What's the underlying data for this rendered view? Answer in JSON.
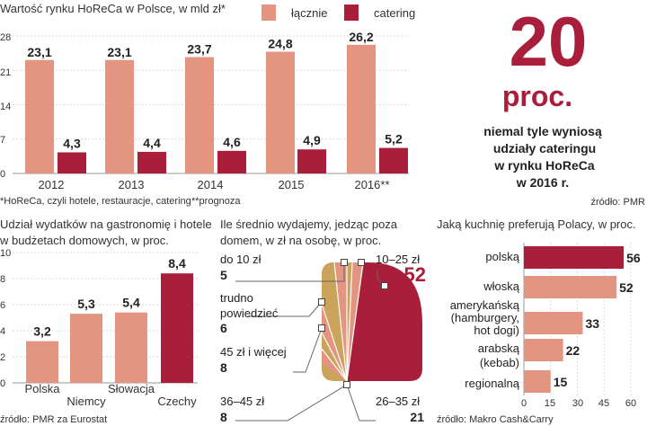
{
  "colors": {
    "salmon": "#e39582",
    "crimson": "#a91e3b",
    "gold": "#c9a45a",
    "text": "#333333",
    "grid": "#d9d9d9"
  },
  "chart_data": [
    {
      "type": "bar",
      "title": "Wartość rynku HoReCa w Polsce, w mld zł*",
      "categories": [
        "2012",
        "2013",
        "2014",
        "2015",
        "2016**"
      ],
      "series": [
        {
          "name": "łącznie",
          "values": [
            23.1,
            23.1,
            23.7,
            24.8,
            26.2
          ],
          "labels": [
            "23,1",
            "23,1",
            "23,7",
            "24,8",
            "26,2"
          ]
        },
        {
          "name": "catering",
          "values": [
            4.3,
            4.4,
            4.6,
            4.9,
            5.2
          ],
          "labels": [
            "4,3",
            "4,4",
            "4,6",
            "4,9",
            "5,2"
          ]
        }
      ],
      "ylim": [
        0,
        28
      ],
      "yticks": [
        "0",
        "7",
        "14",
        "21",
        "28"
      ],
      "footnote_left": "*HoReCa, czyli hotele, restauracje, catering",
      "footnote_right": "**prognoza"
    },
    {
      "type": "bar",
      "title_lines": [
        "Udział wydatków na gastronomię i hotele",
        "w budżetach domowych, w proc."
      ],
      "categories": [
        "Polska",
        "Niemcy",
        "Słowacja",
        "Czechy"
      ],
      "values": [
        3.2,
        5.3,
        5.4,
        8.4
      ],
      "labels": [
        "3,2",
        "5,3",
        "5,4",
        "8,4"
      ],
      "ylim": [
        0,
        10
      ],
      "yticks": [
        "0",
        "2",
        "4",
        "6",
        "8",
        "10"
      ],
      "source": "źródło: PMR za Eurostat"
    },
    {
      "type": "pie",
      "title_lines": [
        "Ile średnio wydajemy, jedząc poza",
        "domem, w zł na osobę, w proc."
      ],
      "slices": [
        {
          "label": "10–25 zł",
          "value": 52
        },
        {
          "label": "26–35 zł",
          "value": 21
        },
        {
          "label": "36–45 zł",
          "value": 8
        },
        {
          "label": "45 zł i więcej",
          "value": 8
        },
        {
          "label": "trudno powiedzieć",
          "value": 6
        },
        {
          "label": "do 10 zł",
          "value": 5
        }
      ],
      "value_labels": [
        "52",
        "21",
        "8",
        "8",
        "6",
        "5"
      ]
    },
    {
      "type": "bar",
      "orientation": "horizontal",
      "title": "Jaką kuchnię preferują Polacy, w proc.",
      "categories": [
        "polską",
        "włoską",
        "amerykańską (hamburgery, hot dogi)",
        "arabską (kebab)",
        "regionalną"
      ],
      "values": [
        56,
        52,
        33,
        22,
        15
      ],
      "xlim": [
        0,
        60
      ],
      "xticks": [
        "0",
        "15",
        "30",
        "45",
        "60"
      ],
      "source": "źródło: Makro Cash&Carry"
    }
  ],
  "legend": {
    "total": "łącznie",
    "catering": "catering"
  },
  "callout": {
    "number": "20",
    "unit": "proc.",
    "lines": [
      "niemal tyle wyniosą",
      "udziały cateringu",
      "w rynku HoReCa",
      "w 2016 r."
    ],
    "source": "źródło: PMR"
  },
  "pie_text": {
    "label_do10": "do 10 zł",
    "label_trudno_1": "trudno",
    "label_trudno_2": "powiedzieć",
    "label_45plus": "45 zł i więcej",
    "label_36_45": "36–45 zł",
    "label_10_25": "10–25 zł",
    "label_26_35": "26–35 zł"
  },
  "hbar_labels": {
    "polska": "polską",
    "wloska": "włoską",
    "amer_1": "amerykańską",
    "amer_2": "(hamburgery,",
    "amer_3": "hot dogi)",
    "arab_1": "arabską",
    "arab_2": "(kebab)",
    "regional": "regionalną"
  }
}
